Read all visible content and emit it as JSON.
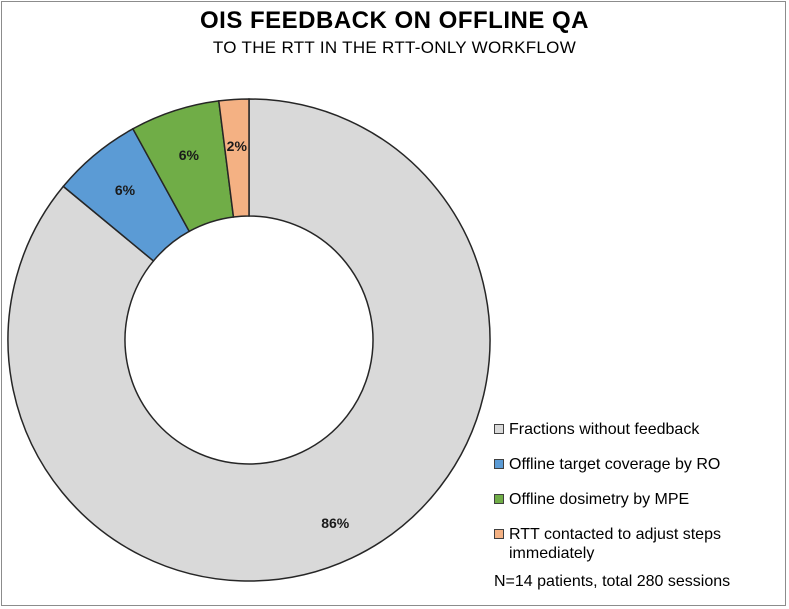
{
  "chart_data": {
    "type": "pie",
    "title": "OIS FEEDBACK ON OFFLINE QA",
    "subtitle": "TO THE RTT IN THE RTT-ONLY WORKFLOW",
    "note": "N=14 patients, total 280 sessions",
    "series": [
      {
        "name": "Fractions without feedback",
        "value": 86,
        "label": "86%",
        "color": "#d9d9d9"
      },
      {
        "name": "Offline target coverage by RO",
        "value": 6,
        "label": "6%",
        "color": "#5b9bd5"
      },
      {
        "name": "Offline dosimetry by MPE",
        "value": 6,
        "label": "6%",
        "color": "#70ad47"
      },
      {
        "name": "RTT contacted to adjust steps immediately",
        "value": 2,
        "label": "2%",
        "color": "#f4b183"
      }
    ],
    "legend_placement": "bottom-right"
  }
}
